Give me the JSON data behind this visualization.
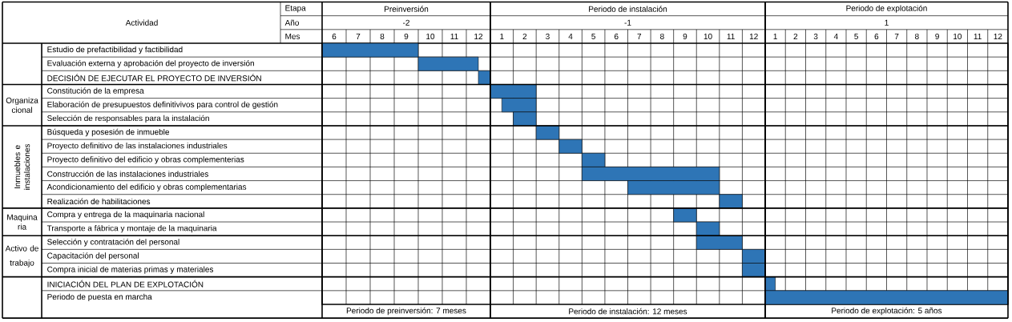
{
  "chart_data": [
    {
      "type": "bar",
      "orientation": "horizontal",
      "grid": true,
      "color": "#2e75b6",
      "title": "Preinversión",
      "subtitle": "-2",
      "categories": [
        "Estudio de prefactibilidad y factibilidad",
        "Evaluación externa y aprobación del proyecto de inversión",
        "DECISIÓN DE EJECUTAR EL PROYECTO DE INVERSIÓN",
        "Constitución de la empresa",
        "Elaboración de presupuestos definitivivos para control de gestión",
        "Selección de responsables para la instalación",
        "Búsqueda y posesión de inmueble",
        "Proyecto definitivo de las instalaciones industriales",
        "Proyecto definitivo del edificio y obras complementerias",
        "Construcción de las instalaciones industriales",
        "Acondicionamiento del edificio y obras complementarias",
        "Realización de habilitaciones",
        "Compra y entrega de la maquinaria nacional",
        "Transporte a fábrica y montaje de la maquinaria",
        "Selección y contratación del personal",
        "Capacitación del personal",
        "Compra inicial de materias primas y materiales",
        "INICIACIÓN DEL PLAN DE EXPLOTACIÓN",
        "Periodo de puesta en marcha"
      ],
      "base": [
        5.5,
        9.5,
        12,
        null,
        null,
        null,
        null,
        null,
        null,
        null,
        null,
        null,
        null,
        null,
        null,
        null,
        null,
        null,
        null
      ],
      "values": [
        4,
        2.5,
        0.5,
        null,
        null,
        null,
        null,
        null,
        null,
        null,
        null,
        null,
        null,
        null,
        null,
        null,
        null,
        null,
        null
      ],
      "xlim": [
        5.5,
        12.5
      ],
      "xticks": [
        6,
        7,
        8,
        9,
        10,
        11,
        12
      ],
      "annotations": [
        "Actividad",
        "Etapa",
        "Año",
        "Mes",
        "Periodo de preinversión: 7 meses",
        "Organiza cional",
        "Inmuebles e instalaciones",
        "Maquina ria",
        "Activo de trabajo"
      ]
    },
    {
      "type": "bar",
      "orientation": "horizontal",
      "grid": true,
      "color": "#2e75b6",
      "tick_labels": "x",
      "title": "Periodo de instalación",
      "subtitle": "-1",
      "base": [
        null,
        null,
        null,
        0.5,
        1,
        1.5,
        2.5,
        3.5,
        4.5,
        4.5,
        6.5,
        10.5,
        8.5,
        9.5,
        9.5,
        11.5,
        11.5,
        null,
        null
      ],
      "values": [
        null,
        null,
        null,
        2,
        1.5,
        1,
        1,
        1,
        1,
        6,
        4,
        1,
        1,
        1,
        2,
        1,
        1,
        null,
        null
      ],
      "xlim": [
        0.5,
        12.5
      ],
      "xticks": [
        1,
        2,
        3,
        4,
        5,
        6,
        7,
        8,
        9,
        10,
        11,
        12
      ],
      "annotations": [
        "Periodo de instalación: 12 meses"
      ]
    },
    {
      "type": "bar",
      "orientation": "horizontal",
      "grid": true,
      "color": "#2e75b6",
      "tick_labels": "x",
      "title": "Periodo de explotación",
      "subtitle": "1",
      "base": [
        null,
        null,
        null,
        null,
        null,
        null,
        null,
        null,
        null,
        null,
        null,
        null,
        null,
        null,
        null,
        null,
        null,
        0.5,
        0.5
      ],
      "values": [
        null,
        null,
        null,
        null,
        null,
        null,
        null,
        null,
        null,
        null,
        null,
        null,
        null,
        null,
        null,
        null,
        null,
        0.5,
        12
      ],
      "xlim": [
        0.5,
        12.5
      ],
      "xticks": [
        1,
        2,
        3,
        4,
        5,
        6,
        7,
        8,
        9,
        10,
        11,
        12
      ],
      "annotations": [
        "Periodo de explotación: 5 años"
      ]
    }
  ]
}
